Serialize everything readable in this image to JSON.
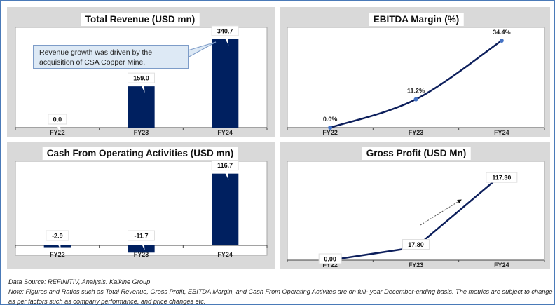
{
  "footer": {
    "source": "Data Source: REFINITIV, Analysis: Kalkine Group",
    "note": "Note: Figures and Ratios such as Total Revenue, Gross Profit, EBITDA Margin, and Cash From Operating Activites are on full- year December-ending basis. The metrics are subject to change as per factors such as company performance, and price changes etc."
  },
  "colors": {
    "bar": "#002060",
    "line": "#0d1f5c",
    "marker": "#4472c4",
    "panel_bg": "#d9d9d9",
    "border": "#4a7ab8"
  },
  "chart_data": [
    {
      "id": "revenue",
      "type": "bar",
      "title": "Total Revenue (USD mn)",
      "categories": [
        "FY22",
        "FY23",
        "FY24"
      ],
      "values": [
        0.0,
        159.0,
        340.7
      ],
      "labels": [
        "0.0",
        "159.0",
        "340.7"
      ],
      "annotation": "Revenue growth was driven by the acquisition of CSA Copper Mine.",
      "xlabel": "",
      "ylabel": "",
      "ylim": [
        0,
        370
      ],
      "grid": false
    },
    {
      "id": "ebitda",
      "type": "line",
      "title": "EBITDA Margin (%)",
      "categories": [
        "FY22",
        "FY23",
        "FY24"
      ],
      "values": [
        0.0,
        11.2,
        34.4
      ],
      "labels": [
        "0.0%",
        "11.2%",
        "34.4%"
      ],
      "xlabel": "",
      "ylabel": "",
      "ylim": [
        0,
        38
      ],
      "grid": false
    },
    {
      "id": "cfo",
      "type": "bar",
      "title": "Cash From Operating Activities (USD mn)",
      "categories": [
        "FY22",
        "FY23",
        "FY24"
      ],
      "values": [
        -2.9,
        -11.7,
        116.7
      ],
      "labels": [
        "-2.9",
        "-11.7",
        "116.7"
      ],
      "xlabel": "",
      "ylabel": "",
      "ylim": [
        -15,
        130
      ],
      "grid": false
    },
    {
      "id": "gross",
      "type": "line",
      "title": "Gross Profit (USD Mn)",
      "categories": [
        "FY22",
        "FY23",
        "FY24"
      ],
      "values": [
        0.0,
        17.8,
        117.3
      ],
      "labels": [
        "0.00",
        "17.80",
        "117.30"
      ],
      "xlabel": "",
      "ylabel": "",
      "ylim": [
        0,
        130
      ],
      "grid": false
    }
  ]
}
